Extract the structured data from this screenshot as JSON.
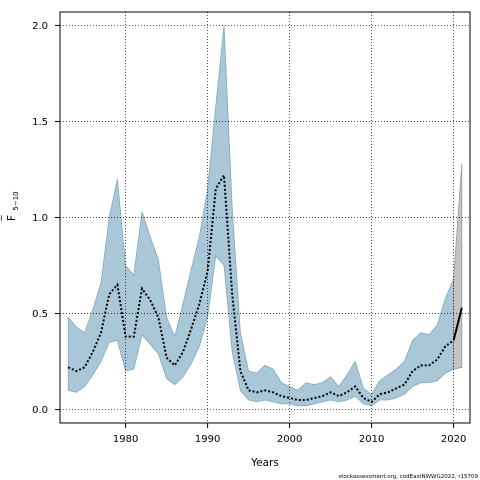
{
  "chart_data": {
    "type": "area",
    "title": "",
    "xlabel": "Years",
    "ylabel": "F",
    "ylabel_bar": "‾",
    "ylabel_sub": "5−10",
    "xlim": [
      1972,
      2022
    ],
    "ylim": [
      -0.07,
      2.07
    ],
    "x_ticks": [
      1980,
      1990,
      2000,
      2010,
      2020
    ],
    "y_ticks": [
      0.0,
      0.5,
      1.0,
      1.5,
      2.0
    ],
    "y_tick_labels": [
      "0.0",
      "0.5",
      "1.0",
      "1.5",
      "2.0"
    ],
    "grid": true,
    "legend": "none",
    "footer": "stockassessment.org, codEastNWWG2022, r15709",
    "colors": {
      "band": "#a9c7d6",
      "band_stroke": "#7fa9bf",
      "band_current": "#bdd9e6",
      "forecast_band": "#c4c4c4",
      "estimate_line": "#000000",
      "grid": "#000000"
    },
    "series": [
      {
        "name": "estimate",
        "x": [
          1973,
          1974,
          1975,
          1976,
          1977,
          1978,
          1979,
          1980,
          1981,
          1982,
          1983,
          1984,
          1985,
          1986,
          1987,
          1988,
          1989,
          1990,
          1991,
          1992,
          1993,
          1994,
          1995,
          1996,
          1997,
          1998,
          1999,
          2000,
          2001,
          2002,
          2003,
          2004,
          2005,
          2006,
          2007,
          2008,
          2009,
          2010,
          2011,
          2012,
          2013,
          2014,
          2015,
          2016,
          2017,
          2018,
          2019,
          2020
        ],
        "values": [
          0.22,
          0.2,
          0.22,
          0.3,
          0.4,
          0.6,
          0.65,
          0.38,
          0.38,
          0.63,
          0.57,
          0.48,
          0.27,
          0.23,
          0.3,
          0.42,
          0.55,
          0.72,
          1.15,
          1.22,
          0.6,
          0.2,
          0.1,
          0.09,
          0.1,
          0.09,
          0.07,
          0.06,
          0.05,
          0.05,
          0.06,
          0.07,
          0.09,
          0.07,
          0.09,
          0.12,
          0.06,
          0.04,
          0.08,
          0.09,
          0.11,
          0.13,
          0.2,
          0.23,
          0.23,
          0.26,
          0.33,
          0.36
        ],
        "lower": [
          0.1,
          0.09,
          0.12,
          0.18,
          0.25,
          0.35,
          0.36,
          0.2,
          0.21,
          0.39,
          0.34,
          0.29,
          0.16,
          0.13,
          0.17,
          0.24,
          0.33,
          0.48,
          0.8,
          0.75,
          0.3,
          0.1,
          0.05,
          0.04,
          0.05,
          0.04,
          0.03,
          0.03,
          0.02,
          0.02,
          0.03,
          0.04,
          0.05,
          0.04,
          0.05,
          0.07,
          0.03,
          0.02,
          0.05,
          0.05,
          0.06,
          0.08,
          0.12,
          0.14,
          0.14,
          0.15,
          0.19,
          0.21
        ],
        "upper": [
          0.48,
          0.43,
          0.4,
          0.52,
          0.66,
          1.0,
          1.2,
          0.75,
          0.7,
          1.03,
          0.9,
          0.78,
          0.48,
          0.38,
          0.55,
          0.73,
          0.9,
          1.15,
          1.58,
          2.0,
          1.05,
          0.4,
          0.2,
          0.19,
          0.23,
          0.21,
          0.14,
          0.12,
          0.1,
          0.14,
          0.13,
          0.14,
          0.17,
          0.12,
          0.18,
          0.25,
          0.11,
          0.08,
          0.15,
          0.18,
          0.21,
          0.25,
          0.36,
          0.4,
          0.39,
          0.44,
          0.58,
          0.68
        ]
      },
      {
        "name": "forecast",
        "x": [
          2020,
          2021
        ],
        "values": [
          0.36,
          0.53
        ],
        "lower": [
          0.21,
          0.22
        ],
        "upper": [
          0.68,
          1.28
        ]
      }
    ]
  }
}
